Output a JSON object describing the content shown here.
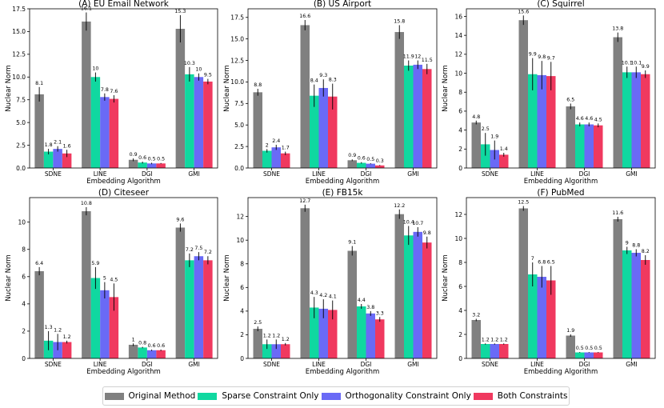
{
  "legend_position": "bottom-center",
  "series_colors": {
    "Original Method": "#808080",
    "Sparse Constraint Only": "#10d8a0",
    "Orthogonality Constraint Only": "#6a6af6",
    "Both Constraints": "#f0395f"
  },
  "chart_data": [
    {
      "type": "bar",
      "title": "(A) EU Email Network",
      "xlabel": "Embedding Algorithm",
      "ylabel": "Nuclear Norm",
      "categories": [
        "SDNE",
        "LINE",
        "DGI",
        "GMI"
      ],
      "ylim": [
        0,
        17.5
      ],
      "yticks": [
        0,
        2.5,
        5,
        7.5,
        10,
        12.5,
        15,
        17.5
      ],
      "ytick_labels": [
        "0.0",
        "2.5",
        "5.0",
        "7.5",
        "10.0",
        "12.5",
        "15.0",
        "17.5"
      ],
      "series": [
        {
          "name": "Original Method",
          "values": [
            8.1,
            16.1,
            0.9,
            15.3
          ],
          "labels": [
            "8.1",
            "16.1",
            "0.9",
            "15.3"
          ],
          "errors": [
            0.8,
            1.0,
            0.15,
            1.5
          ]
        },
        {
          "name": "Sparse Constraint Only",
          "values": [
            1.8,
            10,
            0.6,
            10.3
          ],
          "labels": [
            "1.8",
            "10",
            "0.6",
            "10.3"
          ],
          "errors": [
            0.3,
            0.5,
            0.1,
            0.8
          ]
        },
        {
          "name": "Orthogonality Constraint Only",
          "values": [
            2.1,
            7.8,
            0.5,
            10
          ],
          "labels": [
            "2.1",
            "7.8",
            "0.5",
            "10"
          ],
          "errors": [
            0.3,
            0.4,
            0.08,
            0.4
          ]
        },
        {
          "name": "Both Constraints",
          "values": [
            1.6,
            7.6,
            0.5,
            9.5
          ],
          "labels": [
            "1.6",
            "7.6",
            "0.5",
            "9.5"
          ],
          "errors": [
            0.4,
            0.4,
            0.05,
            0.3
          ]
        }
      ]
    },
    {
      "type": "bar",
      "title": "(B) US Airport",
      "xlabel": "Embedding Algorithm",
      "ylabel": "Nuclear Norm",
      "categories": [
        "SDNE",
        "LINE",
        "DGI",
        "GMI"
      ],
      "ylim": [
        0,
        18.5
      ],
      "yticks": [
        0,
        2.5,
        5,
        7.5,
        10,
        12.5,
        15,
        17.5
      ],
      "ytick_labels": [
        "0.0",
        "2.5",
        "5.0",
        "7.5",
        "10.0",
        "12.5",
        "15.0",
        "17.5"
      ],
      "series": [
        {
          "name": "Original Method",
          "values": [
            8.8,
            16.6,
            0.9,
            15.8
          ],
          "labels": [
            "8.8",
            "16.6",
            "0.9",
            "15.8"
          ],
          "errors": [
            0.4,
            0.6,
            0.1,
            0.8
          ]
        },
        {
          "name": "Sparse Constraint Only",
          "values": [
            2,
            8.4,
            0.6,
            11.9
          ],
          "labels": [
            "2",
            "8.4",
            "0.6",
            "11.9"
          ],
          "errors": [
            0.2,
            1.3,
            0.08,
            0.6
          ]
        },
        {
          "name": "Orthogonality Constraint Only",
          "values": [
            2.4,
            9.3,
            0.5,
            12
          ],
          "labels": [
            "2.4",
            "9.3",
            "0.5",
            "12"
          ],
          "errors": [
            0.3,
            1.0,
            0.05,
            0.5
          ]
        },
        {
          "name": "Both Constraints",
          "values": [
            1.7,
            8.3,
            0.3,
            11.5
          ],
          "labels": [
            "1.7",
            "8.3",
            "0.3",
            "11.5"
          ],
          "errors": [
            0.2,
            1.5,
            0.05,
            0.6
          ]
        }
      ]
    },
    {
      "type": "bar",
      "title": "(C) Squirrel",
      "xlabel": "Embedding Algorithm",
      "ylabel": "Nuclear Norm",
      "categories": [
        "SDNE",
        "LINE",
        "DGI",
        "GMI"
      ],
      "ylim": [
        0,
        16.8
      ],
      "yticks": [
        0,
        2,
        4,
        6,
        8,
        10,
        12,
        14,
        16
      ],
      "ytick_labels": [
        "0",
        "2",
        "4",
        "6",
        "8",
        "10",
        "12",
        "14",
        "16"
      ],
      "series": [
        {
          "name": "Original Method",
          "values": [
            4.8,
            15.6,
            6.5,
            13.8
          ],
          "labels": [
            "4.8",
            "15.6",
            "6.5",
            "13.8"
          ],
          "errors": [
            0.2,
            0.5,
            0.3,
            0.5
          ]
        },
        {
          "name": "Sparse Constraint Only",
          "values": [
            2.5,
            9.9,
            4.6,
            10.1
          ],
          "labels": [
            "2.5",
            "9.9",
            "4.6",
            "10.1"
          ],
          "errors": [
            1.2,
            1.7,
            0.2,
            0.6
          ]
        },
        {
          "name": "Orthogonality Constraint Only",
          "values": [
            1.9,
            9.8,
            4.6,
            10.1
          ],
          "labels": [
            "1.9",
            "9.8",
            "4.6",
            "10.1"
          ],
          "errors": [
            1.0,
            1.5,
            0.2,
            0.6
          ]
        },
        {
          "name": "Both Constraints",
          "values": [
            1.4,
            9.7,
            4.5,
            9.9
          ],
          "labels": [
            "1.4",
            "9.7",
            "4.5",
            "9.9"
          ],
          "errors": [
            0.2,
            1.5,
            0.2,
            0.4
          ]
        }
      ]
    },
    {
      "type": "bar",
      "title": "(D) Citeseer",
      "xlabel": "Embedding Algorithm",
      "ylabel": "Nuclear Norm",
      "categories": [
        "SDNE",
        "LINE",
        "DGI",
        "GMI"
      ],
      "ylim": [
        0,
        11.8
      ],
      "yticks": [
        0,
        2,
        4,
        6,
        8,
        10
      ],
      "ytick_labels": [
        "0",
        "2",
        "4",
        "6",
        "8",
        "10"
      ],
      "series": [
        {
          "name": "Original Method",
          "values": [
            6.4,
            10.8,
            1,
            9.6
          ],
          "labels": [
            "6.4",
            "10.8",
            "1",
            "9.6"
          ],
          "errors": [
            0.3,
            0.3,
            0.1,
            0.3
          ]
        },
        {
          "name": "Sparse Constraint Only",
          "values": [
            1.3,
            5.9,
            0.8,
            7.2
          ],
          "labels": [
            "1.3",
            "5.9",
            "0.8",
            "7.2"
          ],
          "errors": [
            0.7,
            0.8,
            0.05,
            0.5
          ]
        },
        {
          "name": "Orthogonality Constraint Only",
          "values": [
            1.2,
            5,
            0.6,
            7.5
          ],
          "labels": [
            "1.2",
            "5",
            "0.6",
            "7.5"
          ],
          "errors": [
            0.6,
            0.6,
            0.05,
            0.3
          ]
        },
        {
          "name": "Both Constraints",
          "values": [
            1.2,
            4.5,
            0.6,
            7.2
          ],
          "labels": [
            "1.2",
            "4.5",
            "0.6",
            "7.2"
          ],
          "errors": [
            0.1,
            1.0,
            0.05,
            0.3
          ]
        }
      ]
    },
    {
      "type": "bar",
      "title": "(E) FB15k",
      "xlabel": "Embedding Algorithm",
      "ylabel": "Nuclear Norm",
      "categories": [
        "SDNE",
        "LINE",
        "DGI",
        "GMI"
      ],
      "ylim": [
        0,
        13.6
      ],
      "yticks": [
        0,
        2,
        4,
        6,
        8,
        10,
        12
      ],
      "ytick_labels": [
        "0",
        "2",
        "4",
        "6",
        "8",
        "10",
        "12"
      ],
      "series": [
        {
          "name": "Original Method",
          "values": [
            2.5,
            12.7,
            9.1,
            12.2
          ],
          "labels": [
            "2.5",
            "12.7",
            "9.1",
            "12.2"
          ],
          "errors": [
            0.2,
            0.3,
            0.4,
            0.4
          ]
        },
        {
          "name": "Sparse Constraint Only",
          "values": [
            1.2,
            4.3,
            4.4,
            10.4
          ],
          "labels": [
            "1.2",
            "4.3",
            "4.4",
            "10.4"
          ],
          "errors": [
            0.4,
            0.9,
            0.2,
            0.8
          ]
        },
        {
          "name": "Orthogonality Constraint Only",
          "values": [
            1.2,
            4.2,
            3.8,
            10.7
          ],
          "labels": [
            "1.2",
            "4.2",
            "3.8",
            "10.7"
          ],
          "errors": [
            0.4,
            0.8,
            0.2,
            0.4
          ]
        },
        {
          "name": "Both Constraints",
          "values": [
            1.2,
            4.1,
            3.3,
            9.8
          ],
          "labels": [
            "1.2",
            "4.1",
            "3.3",
            "9.8"
          ],
          "errors": [
            0.1,
            0.8,
            0.2,
            0.5
          ]
        }
      ]
    },
    {
      "type": "bar",
      "title": "(F) PubMed",
      "xlabel": "Embedding Algorithm",
      "ylabel": "Nuclear Norm",
      "categories": [
        "SDNE",
        "LINE",
        "DGI",
        "GMI"
      ],
      "ylim": [
        0,
        13.4
      ],
      "yticks": [
        0,
        2,
        4,
        6,
        8,
        10,
        12
      ],
      "ytick_labels": [
        "0",
        "2",
        "4",
        "6",
        "8",
        "10",
        "12"
      ],
      "series": [
        {
          "name": "Original Method",
          "values": [
            3.2,
            12.5,
            1.9,
            11.6
          ],
          "labels": [
            "3.2",
            "12.5",
            "1.9",
            "11.6"
          ],
          "errors": [
            0.1,
            0.2,
            0.1,
            0.2
          ]
        },
        {
          "name": "Sparse Constraint Only",
          "values": [
            1.2,
            7,
            0.5,
            9
          ],
          "labels": [
            "1.2",
            "7",
            "0.5",
            "9"
          ],
          "errors": [
            0.05,
            1.0,
            0.03,
            0.3
          ]
        },
        {
          "name": "Orthogonality Constraint Only",
          "values": [
            1.2,
            6.8,
            0.5,
            8.8
          ],
          "labels": [
            "1.2",
            "6.8",
            "0.5",
            "8.8"
          ],
          "errors": [
            0.05,
            0.9,
            0.03,
            0.3
          ]
        },
        {
          "name": "Both Constraints",
          "values": [
            1.2,
            6.5,
            0.5,
            8.2
          ],
          "labels": [
            "1.2",
            "6.5",
            "0.5",
            "8.2"
          ],
          "errors": [
            0.05,
            1.2,
            0.03,
            0.4
          ]
        }
      ]
    }
  ]
}
